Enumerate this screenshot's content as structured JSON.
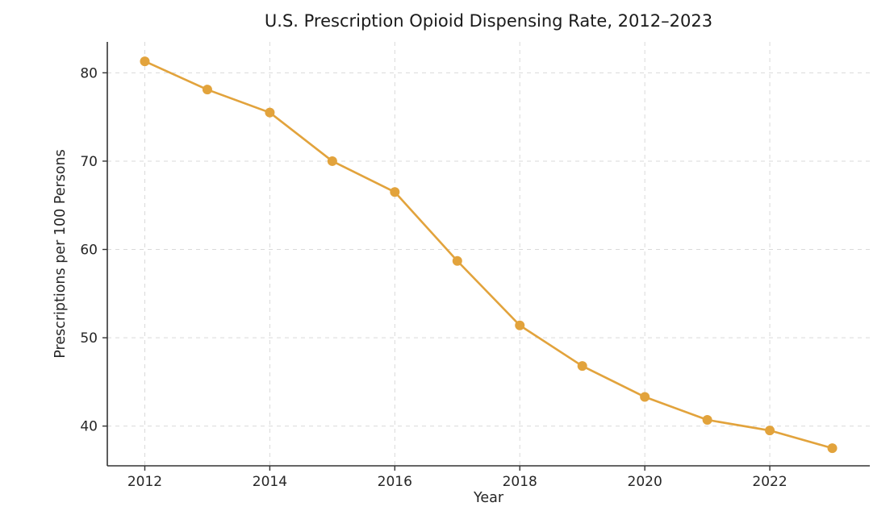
{
  "chart_data": {
    "type": "line",
    "title": "U.S. Prescription Opioid Dispensing Rate, 2012–2023",
    "xlabel": "Year",
    "ylabel": "Prescriptions per 100 Persons",
    "x": [
      2012,
      2013,
      2014,
      2015,
      2016,
      2017,
      2018,
      2019,
      2020,
      2021,
      2022,
      2023
    ],
    "series": [
      {
        "name": "Prescriptions per 100 Persons",
        "values": [
          81.3,
          78.1,
          75.5,
          70.0,
          66.5,
          58.7,
          51.4,
          46.8,
          43.3,
          40.7,
          39.5,
          37.5
        ],
        "color": "#E2A33C"
      }
    ],
    "xlim": [
      2011.4,
      2023.6
    ],
    "ylim": [
      35.5,
      83.5
    ],
    "xticks": [
      2012,
      2014,
      2016,
      2018,
      2020,
      2022
    ],
    "yticks": [
      40,
      50,
      60,
      70,
      80
    ],
    "grid": true,
    "grid_style": "dashed",
    "legend_position": "none"
  },
  "colors": {
    "line": "#E2A33C",
    "marker": "#E2A33C",
    "grid": "#d9d9d9",
    "spine": "#333333",
    "tick_label": "#262626",
    "background": "#ffffff"
  }
}
